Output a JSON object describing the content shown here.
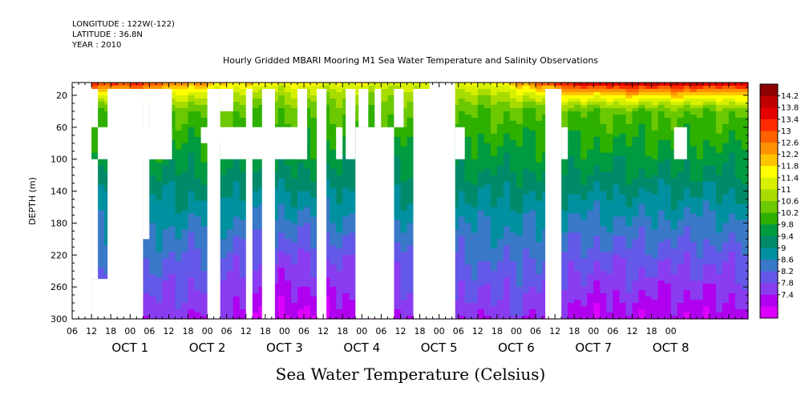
{
  "header": {
    "longitude": "LONGITUDE : 122W(-122)",
    "latitude": "LATITUDE : 36.8N",
    "year": "YEAR : 2010"
  },
  "chart_data": {
    "type": "heatmap",
    "title": "Hourly Gridded MBARI Mooring M1 Sea Water Temperature and Salinity Observations",
    "xlabel": "Sea Water Temperature (Celsius)",
    "ylabel": "DEPTH (m)",
    "ylim": [
      300,
      4
    ],
    "y_ticks": [
      20,
      60,
      100,
      140,
      180,
      220,
      260,
      300
    ],
    "x_range_hours": [
      -18,
      192
    ],
    "x_tick_labels": [
      "06",
      "12",
      "18",
      "00",
      "06",
      "12",
      "18",
      "00",
      "06",
      "12",
      "18",
      "00",
      "06",
      "12",
      "18",
      "00",
      "06",
      "12",
      "18",
      "00",
      "06",
      "12",
      "18",
      "00",
      "06",
      "12",
      "18",
      "00",
      "06",
      "12",
      "18",
      "00"
    ],
    "day_labels": [
      "OCT  1",
      "OCT  2",
      "OCT  3",
      "OCT  4",
      "OCT  5",
      "OCT  6",
      "OCT  7",
      "OCT  8"
    ],
    "colorbar": {
      "labels": [
        "14.2",
        "13.8",
        "13.4",
        "13",
        "12.6",
        "12.2",
        "11.8",
        "11.4",
        "11",
        "10.6",
        "10.2",
        "9.8",
        "9.4",
        "9",
        "8.6",
        "8.2",
        "7.8",
        "7.4"
      ],
      "colors": [
        "#8b0000",
        "#c00000",
        "#e60000",
        "#ff2a00",
        "#ff6000",
        "#ff9200",
        "#ffc400",
        "#ffff00",
        "#d8f000",
        "#a8dc00",
        "#6cc800",
        "#2eb000",
        "#009a40",
        "#008a6a",
        "#0090a0",
        "#3a78c8",
        "#6458e8",
        "#8a3cf0",
        "#b000f0",
        "#dd00ff"
      ],
      "range": [
        7.4,
        14.4
      ]
    },
    "surface_temp_profile": [
      [
        0,
        13.6
      ],
      [
        8,
        13.4
      ],
      [
        16,
        12.8
      ],
      [
        24,
        12.4
      ],
      [
        36,
        12.0
      ],
      [
        48,
        11.9
      ],
      [
        60,
        11.8
      ],
      [
        72,
        11.7
      ],
      [
        84,
        11.6
      ],
      [
        96,
        11.6
      ],
      [
        108,
        11.8
      ],
      [
        120,
        12.3
      ],
      [
        132,
        13.6
      ],
      [
        144,
        14.2
      ],
      [
        156,
        14.4
      ],
      [
        168,
        14.3
      ],
      [
        180,
        14.2
      ],
      [
        192,
        14.0
      ]
    ],
    "deep_temp_profile": [
      [
        0,
        8.4
      ],
      [
        12,
        8.2
      ],
      [
        24,
        8.0
      ],
      [
        36,
        7.9
      ],
      [
        48,
        7.6
      ],
      [
        60,
        7.7
      ],
      [
        72,
        7.9
      ],
      [
        84,
        8.0
      ],
      [
        96,
        8.1
      ],
      [
        108,
        8.2
      ],
      [
        120,
        8.3
      ],
      [
        132,
        8.0
      ],
      [
        144,
        7.8
      ],
      [
        156,
        7.9
      ],
      [
        168,
        7.8
      ],
      [
        180,
        7.8
      ],
      [
        192,
        7.9
      ]
    ],
    "gaps": [
      {
        "x": [
          -18,
          -12
        ],
        "depth": [
          4,
          300
        ]
      },
      {
        "x": [
          -12,
          -10
        ],
        "depth": [
          12,
          60
        ]
      },
      {
        "x": [
          -12,
          -10
        ],
        "depth": [
          100,
          250
        ]
      },
      {
        "x": [
          -12,
          4
        ],
        "depth": [
          250,
          300
        ]
      },
      {
        "x": [
          -10,
          -4
        ],
        "depth": [
          60,
          100
        ]
      },
      {
        "x": [
          -7,
          4
        ],
        "depth": [
          12,
          300
        ]
      },
      {
        "x": [
          -7,
          13
        ],
        "depth": [
          60,
          100
        ]
      },
      {
        "x": [
          4,
          6
        ],
        "depth": [
          12,
          200
        ]
      },
      {
        "x": [
          6,
          13
        ],
        "depth": [
          12,
          100
        ]
      },
      {
        "x": [
          24,
          28
        ],
        "depth": [
          12,
          300
        ]
      },
      {
        "x": [
          28,
          32
        ],
        "depth": [
          12,
          40
        ]
      },
      {
        "x": [
          22,
          55
        ],
        "depth": [
          60,
          80
        ]
      },
      {
        "x": [
          28,
          55
        ],
        "depth": [
          60,
          100
        ]
      },
      {
        "x": [
          36,
          38
        ],
        "depth": [
          12,
          100
        ]
      },
      {
        "x": [
          36,
          38
        ],
        "depth": [
          100,
          300
        ]
      },
      {
        "x": [
          41,
          45
        ],
        "depth": [
          12,
          300
        ]
      },
      {
        "x": [
          52,
          55
        ],
        "depth": [
          12,
          100
        ]
      },
      {
        "x": [
          58,
          61
        ],
        "depth": [
          12,
          300
        ]
      },
      {
        "x": [
          64,
          66
        ],
        "depth": [
          60,
          100
        ]
      },
      {
        "x": [
          67,
          70
        ],
        "depth": [
          12,
          100
        ]
      },
      {
        "x": [
          71,
          74
        ],
        "depth": [
          12,
          60
        ]
      },
      {
        "x": [
          70,
          82
        ],
        "depth": [
          60,
          300
        ]
      },
      {
        "x": [
          72,
          82
        ],
        "depth": [
          100,
          300
        ]
      },
      {
        "x": [
          76,
          78
        ],
        "depth": [
          12,
          60
        ]
      },
      {
        "x": [
          82,
          85
        ],
        "depth": [
          12,
          60
        ]
      },
      {
        "x": [
          88,
          101
        ],
        "depth": [
          12,
          300
        ]
      },
      {
        "x": [
          93,
          101
        ],
        "depth": [
          4,
          12
        ]
      },
      {
        "x": [
          101,
          104
        ],
        "depth": [
          60,
          100
        ]
      },
      {
        "x": [
          129,
          134
        ],
        "depth": [
          12,
          300
        ]
      },
      {
        "x": [
          134,
          136
        ],
        "depth": [
          60,
          100
        ]
      },
      {
        "x": [
          169,
          173
        ],
        "depth": [
          60,
          100
        ]
      }
    ]
  }
}
